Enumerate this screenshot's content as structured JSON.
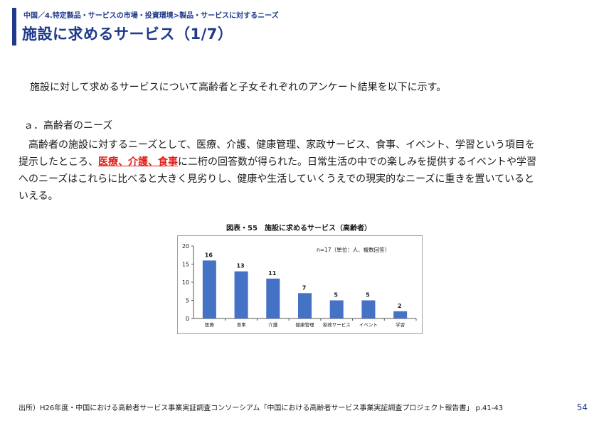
{
  "header": {
    "breadcrumb": "中国／4.特定製品・サービスの市場・投資環境>製品・サービスに対するニーズ",
    "title": "施設に求めるサービス（1/7）",
    "accent_color": "#1f3a8c"
  },
  "intro": "施設に対して求めるサービスについて高齢者と子女それぞれのアンケート結果を以下に示す。",
  "section": {
    "heading": "ａ．高齢者のニーズ",
    "lines": [
      {
        "parts": [
          {
            "text": "　高齢者の施設に対するニーズとして、医療、介護、健康管理、家政サービス、食事、イベント、学習という項目を",
            "highlight": false
          }
        ]
      },
      {
        "parts": [
          {
            "text": "提示したところ、",
            "highlight": false
          },
          {
            "text": "医療、介護、食事",
            "highlight": true
          },
          {
            "text": "に二桁の回答数が得られた。日常生活の中での楽しみを提供するイベントや学習",
            "highlight": false
          }
        ]
      },
      {
        "parts": [
          {
            "text": "へのニーズはこれらに比べると大きく見劣りし、健康や生活していくうえでの現実的なニーズに重きを置いていると",
            "highlight": false
          }
        ]
      },
      {
        "parts": [
          {
            "text": "いえる。",
            "highlight": false
          }
        ]
      }
    ],
    "highlight_color": "#e0211b"
  },
  "figure": {
    "caption": "図表・55　施設に求めるサービス（高齢者）",
    "note": "n=17（単位：人、複数回答）"
  },
  "chart_data": {
    "type": "bar",
    "categories": [
      "医療",
      "食事",
      "介護",
      "健康管理",
      "家政サービス",
      "イベント",
      "学習"
    ],
    "values": [
      16,
      13,
      11,
      7,
      5,
      5,
      2
    ],
    "ylim": [
      0,
      20
    ],
    "yticks": [
      0,
      5,
      10,
      15,
      20
    ],
    "bar_color": "#4472c4",
    "grid": false,
    "title": "",
    "xlabel": "",
    "ylabel": ""
  },
  "footer": {
    "source": "出所）H26年度・中国における高齢者サービス事業実証調査コンソーシアム「中国における高齢者サービス事業実証調査プロジェクト報告書」 p.41-43",
    "page_number": "54"
  }
}
